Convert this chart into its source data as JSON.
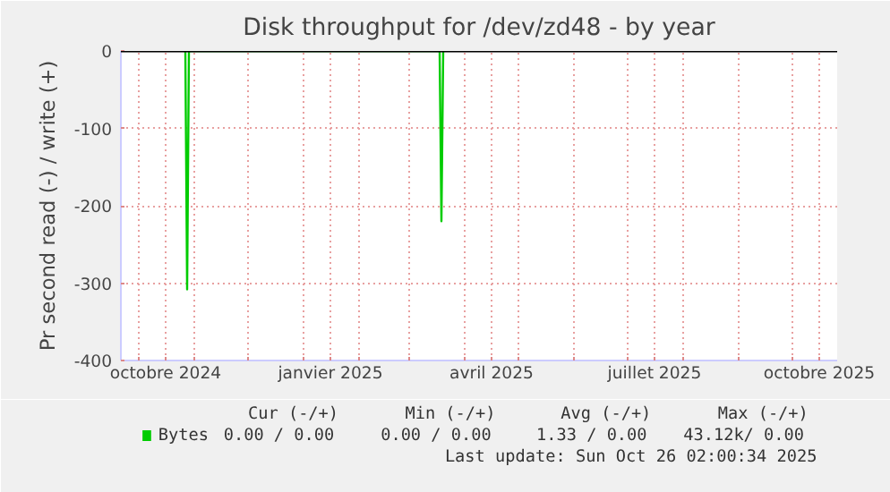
{
  "chart_data": {
    "type": "line",
    "title": "Disk throughput for /dev/zd48 - by year",
    "ylabel": "Pr second read (-) / write (+)",
    "xlim": [
      "2024-09-21",
      "2025-10-26"
    ],
    "xticks": [
      {
        "value": "2024-10-01",
        "label": null
      },
      {
        "value": "2024-10-16",
        "label": "octobre 2024"
      },
      {
        "value": "2024-11-01",
        "label": null
      },
      {
        "value": "2024-12-01",
        "label": null
      },
      {
        "value": "2025-01-01",
        "label": null
      },
      {
        "value": "2025-01-16",
        "label": "janvier 2025"
      },
      {
        "value": "2025-02-01",
        "label": null
      },
      {
        "value": "2025-03-01",
        "label": null
      },
      {
        "value": "2025-04-01",
        "label": null
      },
      {
        "value": "2025-04-16",
        "label": "avril 2025"
      },
      {
        "value": "2025-05-01",
        "label": null
      },
      {
        "value": "2025-06-01",
        "label": null
      },
      {
        "value": "2025-07-01",
        "label": null
      },
      {
        "value": "2025-07-16",
        "label": "juillet 2025"
      },
      {
        "value": "2025-08-01",
        "label": null
      },
      {
        "value": "2025-09-01",
        "label": null
      },
      {
        "value": "2025-10-01",
        "label": null
      },
      {
        "value": "2025-10-16",
        "label": "octobre 2025"
      }
    ],
    "ylim": [
      -400,
      0
    ],
    "yticks": [
      0,
      -100,
      -200,
      -300,
      -400
    ],
    "grid": true,
    "legend": "bottom",
    "ref_lines": [
      {
        "axis": "y",
        "value": 0,
        "label": null,
        "color": "#000000"
      }
    ],
    "series": [
      {
        "name": "Bytes",
        "color": "#00cc00",
        "x": [
          "2024-10-27",
          "2024-10-28",
          "2024-10-29",
          "2025-03-18",
          "2025-03-19",
          "2025-03-20"
        ],
        "values": [
          0,
          -308,
          0,
          0,
          -220,
          0
        ]
      }
    ],
    "annotations": [
      "Cur (-/+)",
      "Min (-/+)",
      "Avg (-/+)",
      "Max (-/+)",
      "0.00 /  0.00",
      "0.00 /  0.00",
      "1.33 /  0.00",
      "43.12k/  0.00",
      "Last update: Sun Oct 26 02:00:34 2025"
    ]
  }
}
